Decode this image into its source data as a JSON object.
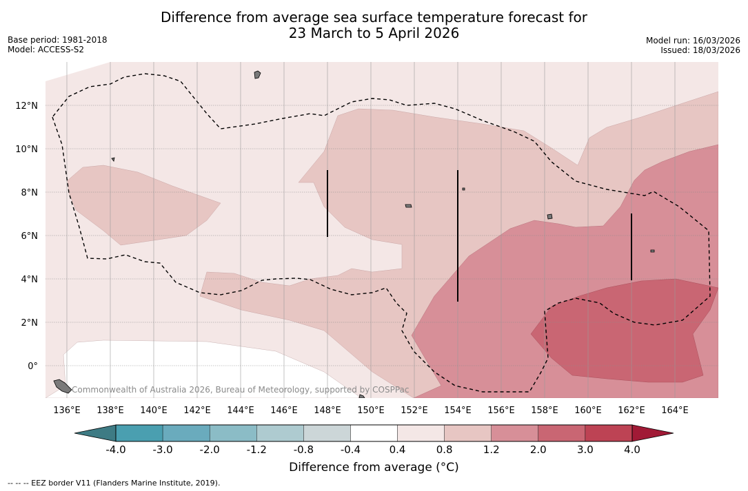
{
  "title_line1": "Difference from average sea surface temperature forecast for",
  "title_line2": "23 March to 5 April 2026",
  "base_period": "Base period: 1981-2018",
  "model": "Model: ACCESS-S2",
  "model_run": "Model run: 16/03/2026",
  "issued": "Issued: 18/03/2026",
  "watermark": "Commonwealth of Australia 2026, Bureau of Meteorology, supported by COSPPac",
  "footer": "--  --  -- EEZ border V11 (Flanders Marine Institute, 2019).",
  "lon_labels": [
    "136°E",
    "138°E",
    "140°E",
    "142°E",
    "144°E",
    "146°E",
    "148°E",
    "150°E",
    "152°E",
    "154°E",
    "156°E",
    "158°E",
    "160°E",
    "162°E",
    "164°E"
  ],
  "lat_labels": [
    "12°N",
    "10°N",
    "8°N",
    "6°N",
    "4°N",
    "2°N",
    "0°"
  ],
  "colorbar": {
    "title": "Difference from average (°C)",
    "tick_labels": [
      "-4.0",
      "-3.0",
      "-2.0",
      "-1.2",
      "-0.8",
      "-0.4",
      "0.4",
      "0.8",
      "1.2",
      "2.0",
      "3.0",
      "4.0"
    ],
    "colors": [
      "#4a9fb0",
      "#6aabbd",
      "#8bbcc6",
      "#aecbd0",
      "#ccd6d8",
      "#ffffff",
      "#f4e7e6",
      "#e7c6c3",
      "#d78f98",
      "#c96673",
      "#bd4354"
    ],
    "under_color": "#3e7b84",
    "over_color": "#a11a36"
  }
}
